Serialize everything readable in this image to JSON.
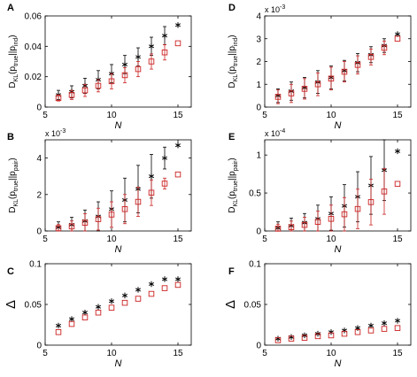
{
  "chart_data": [
    {
      "panel": "A",
      "type": "scatter",
      "ylabel_parts": [
        "D",
        "KL",
        "(p",
        "true",
        "||p",
        "ind",
        ")"
      ],
      "xlabel": "N",
      "xlim": [
        5,
        16
      ],
      "ylim": [
        0,
        0.06
      ],
      "xticks": [
        "5",
        "10",
        "15"
      ],
      "yticks": [
        "0",
        "0.02",
        "0.04",
        "0.06"
      ],
      "ytick_values": [
        0,
        0.02,
        0.04,
        0.06
      ],
      "exponent": "",
      "x": [
        6,
        7,
        8,
        9,
        10,
        11,
        12,
        13,
        14,
        15
      ],
      "series": [
        {
          "marker": "star",
          "values": [
            0.008,
            0.01,
            0.014,
            0.018,
            0.022,
            0.028,
            0.033,
            0.04,
            0.047,
            0.054
          ],
          "err": [
            0.003,
            0.004,
            0.005,
            0.006,
            0.006,
            0.006,
            0.006,
            0.006,
            0.006,
            0
          ]
        },
        {
          "marker": "square",
          "values": [
            0.006,
            0.008,
            0.011,
            0.014,
            0.017,
            0.021,
            0.025,
            0.03,
            0.036,
            0.042
          ],
          "err": [
            0.002,
            0.003,
            0.004,
            0.004,
            0.005,
            0.005,
            0.005,
            0.005,
            0.005,
            0
          ]
        }
      ]
    },
    {
      "panel": "D",
      "type": "scatter",
      "ylabel_parts": [
        "D",
        "KL",
        "(p",
        "true",
        "||p",
        "ind",
        ")"
      ],
      "xlabel": "N",
      "xlim": [
        5,
        16
      ],
      "ylim": [
        0,
        4
      ],
      "xticks": [
        "5",
        "10",
        "15"
      ],
      "yticks": [
        "0",
        "1",
        "2",
        "3",
        "4"
      ],
      "ytick_values": [
        0,
        1,
        2,
        3,
        4
      ],
      "exponent": "-3",
      "x": [
        6,
        7,
        8,
        9,
        10,
        11,
        12,
        13,
        14,
        15
      ],
      "series": [
        {
          "marker": "star",
          "values": [
            0.5,
            0.7,
            0.85,
            1.1,
            1.3,
            1.6,
            1.95,
            2.3,
            2.7,
            3.2
          ],
          "err": [
            0.3,
            0.4,
            0.45,
            0.5,
            0.5,
            0.45,
            0.4,
            0.35,
            0.3,
            0
          ]
        },
        {
          "marker": "square",
          "values": [
            0.45,
            0.6,
            0.8,
            1.0,
            1.25,
            1.55,
            1.85,
            2.2,
            2.6,
            3.0
          ],
          "err": [
            0.3,
            0.4,
            0.45,
            0.5,
            0.5,
            0.45,
            0.4,
            0.35,
            0.3,
            0
          ]
        }
      ]
    },
    {
      "panel": "B",
      "type": "scatter",
      "ylabel_parts": [
        "D",
        "KL",
        "(p",
        "true",
        "||p",
        "pair",
        ")"
      ],
      "xlabel": "N",
      "xlim": [
        5,
        16
      ],
      "ylim": [
        0,
        5
      ],
      "xticks": [
        "5",
        "10",
        "15"
      ],
      "yticks": [
        "0",
        "2",
        "4"
      ],
      "ytick_values": [
        0,
        2,
        4
      ],
      "exponent": "-3",
      "x": [
        6,
        7,
        8,
        9,
        10,
        11,
        12,
        13,
        14,
        15
      ],
      "series": [
        {
          "marker": "star",
          "values": [
            0.2,
            0.35,
            0.55,
            0.8,
            1.2,
            1.7,
            2.3,
            3.0,
            4.0,
            4.7
          ],
          "err": [
            0.3,
            0.4,
            0.6,
            0.8,
            1.0,
            1.2,
            1.3,
            1.2,
            0.6,
            0
          ]
        },
        {
          "marker": "square",
          "values": [
            0.15,
            0.25,
            0.45,
            0.65,
            0.9,
            1.2,
            1.6,
            2.1,
            2.6,
            3.1
          ],
          "err": [
            0.2,
            0.3,
            0.5,
            0.6,
            0.7,
            0.8,
            0.8,
            0.7,
            0.3,
            0
          ]
        }
      ]
    },
    {
      "panel": "E",
      "type": "scatter",
      "ylabel_parts": [
        "D",
        "KL",
        "(p",
        "true",
        "||p",
        "pair",
        ")"
      ],
      "xlabel": "N",
      "xlim": [
        5,
        16
      ],
      "ylim": [
        0,
        1.2
      ],
      "xticks": [
        "5",
        "10",
        "15"
      ],
      "yticks": [
        "0",
        "0.5",
        "1"
      ],
      "ytick_values": [
        0,
        0.5,
        1
      ],
      "exponent": "-4",
      "x": [
        6,
        7,
        8,
        9,
        10,
        11,
        12,
        13,
        14,
        15
      ],
      "series": [
        {
          "marker": "star",
          "values": [
            0.04,
            0.07,
            0.11,
            0.16,
            0.23,
            0.33,
            0.45,
            0.6,
            0.8,
            1.05
          ],
          "err": [
            0.08,
            0.1,
            0.12,
            0.18,
            0.22,
            0.28,
            0.33,
            0.38,
            0.4,
            0
          ]
        },
        {
          "marker": "square",
          "values": [
            0.03,
            0.05,
            0.08,
            0.12,
            0.16,
            0.22,
            0.29,
            0.38,
            0.52,
            0.62
          ],
          "err": [
            0.06,
            0.08,
            0.1,
            0.14,
            0.18,
            0.22,
            0.26,
            0.3,
            0.3,
            0
          ]
        }
      ]
    },
    {
      "panel": "C",
      "type": "scatter",
      "ylabel_parts": [
        "Δ"
      ],
      "xlabel": "N",
      "xlim": [
        5,
        16
      ],
      "ylim": [
        0,
        0.1
      ],
      "xticks": [
        "5",
        "10",
        "15"
      ],
      "yticks": [
        "0",
        "0.05",
        "0.1"
      ],
      "ytick_values": [
        0,
        0.05,
        0.1
      ],
      "exponent": "",
      "x": [
        6,
        7,
        8,
        9,
        10,
        11,
        12,
        13,
        14,
        15
      ],
      "series": [
        {
          "marker": "star",
          "values": [
            0.024,
            0.032,
            0.04,
            0.047,
            0.054,
            0.061,
            0.068,
            0.075,
            0.081,
            0.081
          ],
          "err": []
        },
        {
          "marker": "square",
          "values": [
            0.016,
            0.026,
            0.034,
            0.04,
            0.046,
            0.052,
            0.057,
            0.063,
            0.07,
            0.074
          ],
          "err": []
        }
      ]
    },
    {
      "panel": "F",
      "type": "scatter",
      "ylabel_parts": [
        "Δ"
      ],
      "xlabel": "N",
      "xlim": [
        5,
        16
      ],
      "ylim": [
        0,
        0.1
      ],
      "xticks": [
        "5",
        "10",
        "15"
      ],
      "yticks": [
        "0",
        "0.05",
        "0.1"
      ],
      "ytick_values": [
        0,
        0.05,
        0.1
      ],
      "exponent": "",
      "x": [
        6,
        7,
        8,
        9,
        10,
        11,
        12,
        13,
        14,
        15
      ],
      "series": [
        {
          "marker": "star",
          "values": [
            0.008,
            0.01,
            0.012,
            0.014,
            0.016,
            0.018,
            0.021,
            0.024,
            0.027,
            0.03
          ],
          "err": []
        },
        {
          "marker": "square",
          "values": [
            0.006,
            0.008,
            0.009,
            0.011,
            0.012,
            0.014,
            0.016,
            0.018,
            0.02,
            0.021
          ],
          "err": []
        }
      ]
    }
  ],
  "colors": {
    "star": "#000000",
    "square": "#cc2222",
    "axis": "#000000"
  }
}
